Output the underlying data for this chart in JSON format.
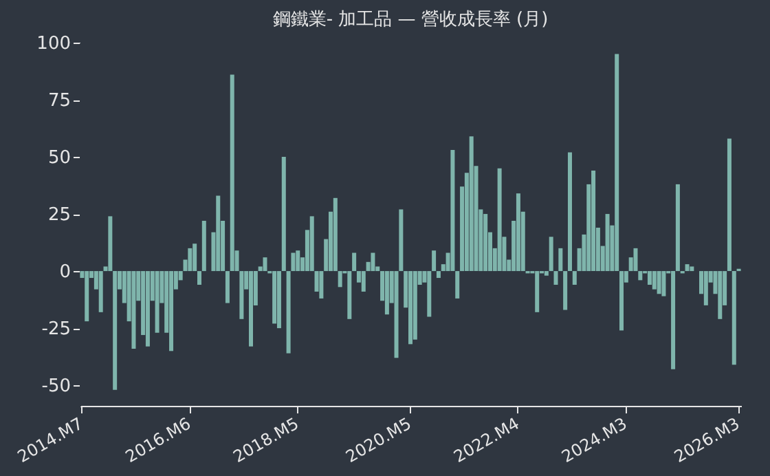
{
  "chart_data": {
    "type": "bar",
    "title": "鋼鐵業- 加工品 — 營收成長率 (月)",
    "categories": [
      "2014.M7",
      null,
      null,
      null,
      null,
      null,
      null,
      null,
      null,
      null,
      null,
      null,
      null,
      null,
      null,
      null,
      null,
      null,
      null,
      null,
      null,
      null,
      null,
      "2016.M6",
      null,
      null,
      null,
      null,
      null,
      null,
      null,
      null,
      null,
      null,
      null,
      null,
      null,
      null,
      null,
      null,
      null,
      null,
      null,
      null,
      null,
      null,
      "2018.M5",
      null,
      null,
      null,
      null,
      null,
      null,
      null,
      null,
      null,
      null,
      null,
      null,
      null,
      null,
      null,
      null,
      null,
      null,
      null,
      null,
      null,
      null,
      null,
      "2020.M5",
      null,
      null,
      null,
      null,
      null,
      null,
      null,
      null,
      null,
      null,
      null,
      null,
      null,
      null,
      null,
      null,
      null,
      null,
      null,
      null,
      null,
      null,
      "2022.M4",
      null,
      null,
      null,
      null,
      null,
      null,
      null,
      null,
      null,
      null,
      null,
      null,
      null,
      null,
      null,
      null,
      null,
      null,
      null,
      null,
      null,
      null,
      "2024.M3",
      null,
      null,
      null,
      null,
      null,
      null,
      null,
      null,
      null,
      null,
      null,
      null,
      null,
      null,
      null,
      null,
      null,
      null,
      null,
      null,
      null,
      null,
      null,
      "2026.M3"
    ],
    "values": [
      -3,
      -22,
      -3,
      -8,
      -18,
      2,
      24,
      -52,
      -8,
      -14,
      -22,
      -34,
      -13,
      -28,
      -33,
      -13,
      -27,
      -14,
      -27,
      -35,
      -8,
      -4,
      5,
      10,
      12,
      -6,
      22,
      0,
      17,
      33,
      22,
      -14,
      86,
      9,
      -21,
      -8,
      -33,
      -15,
      2,
      6,
      -1,
      -23,
      -25,
      50,
      -36,
      8,
      9,
      6,
      18,
      24,
      -9,
      -12,
      14,
      26,
      32,
      -7,
      -1,
      -21,
      8,
      -5,
      -9,
      4,
      8,
      2,
      -13,
      -19,
      -14,
      -38,
      27,
      -16,
      -32,
      -30,
      -6,
      -5,
      -20,
      9,
      -3,
      3,
      8,
      53,
      -12,
      37,
      43,
      59,
      46,
      27,
      25,
      17,
      10,
      45,
      15,
      5,
      22,
      34,
      26,
      -1,
      -1,
      -18,
      -1,
      -2,
      15,
      -6,
      10,
      -17,
      52,
      -6,
      10,
      16,
      38,
      44,
      19,
      11,
      25,
      20,
      95,
      -26,
      -5,
      6,
      10,
      -4,
      -1,
      -6,
      -8,
      -10,
      -11,
      -1,
      -43,
      38,
      -1,
      3,
      2,
      0,
      -10,
      -15,
      -5,
      -10,
      -21,
      -15,
      58,
      -41,
      1
    ],
    "color": "#7fb5ac",
    "ylim": [
      -59,
      100
    ],
    "yticks": [
      -50,
      -25,
      0,
      25,
      50,
      75,
      100
    ],
    "grid": false
  }
}
